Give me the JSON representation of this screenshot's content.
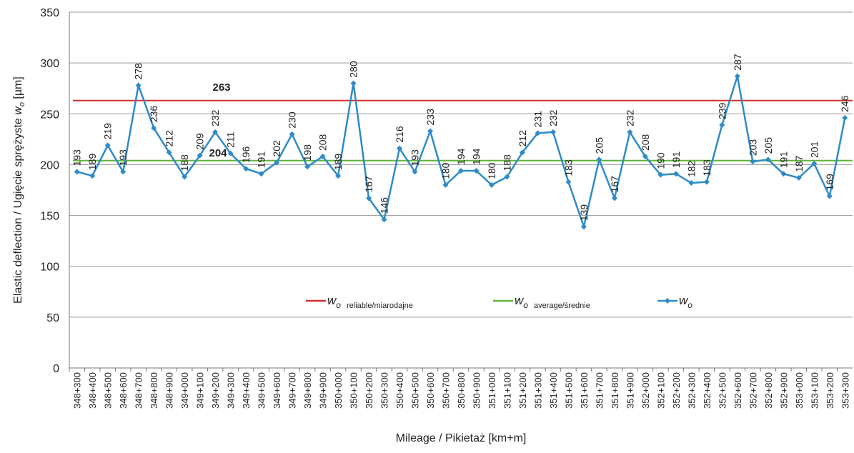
{
  "chart_data": {
    "type": "line",
    "ylabel": [
      "Elastic deflection / Ugięcie sprężyste ",
      "w",
      "o",
      " [µm]"
    ],
    "xlabel": "Mileage / Pikietaż [km+m]",
    "categories": [
      "348+300",
      "348+400",
      "348+500",
      "348+600",
      "348+700",
      "348+800",
      "348+900",
      "349+000",
      "349+100",
      "349+200",
      "349+300",
      "349+400",
      "349+500",
      "349+600",
      "349+700",
      "349+800",
      "349+900",
      "350+000",
      "350+100",
      "350+200",
      "350+300",
      "350+400",
      "350+500",
      "350+600",
      "350+700",
      "350+800",
      "350+900",
      "351+000",
      "351+100",
      "351+200",
      "351+300",
      "351+400",
      "351+500",
      "351+600",
      "351+700",
      "351+800",
      "351+900",
      "352+000",
      "352+100",
      "352+200",
      "352+300",
      "352+400",
      "352+500",
      "352+600",
      "352+700",
      "352+800",
      "352+900",
      "353+000",
      "353+100",
      "353+200",
      "353+300"
    ],
    "series": [
      {
        "name": "w",
        "subscript": "o",
        "note": "",
        "color": "#2e8bc8",
        "values": [
          193,
          189,
          219,
          193,
          278,
          236,
          212,
          188,
          209,
          232,
          211,
          196,
          191,
          202,
          230,
          198,
          208,
          189,
          280,
          167,
          146,
          216,
          193,
          233,
          180,
          194,
          194,
          180,
          188,
          212,
          231,
          232,
          183,
          139,
          205,
          167,
          232,
          208,
          190,
          191,
          182,
          183,
          239,
          287,
          203,
          205,
          191,
          187,
          201,
          169,
          246
        ]
      }
    ],
    "reference_lines": [
      {
        "name": "w",
        "subscript": "o",
        "note": "reliable/miarodajne",
        "value": 263,
        "color": "#d62d2d"
      },
      {
        "name": "w",
        "subscript": "o",
        "note": "average/średnie",
        "value": 204,
        "color": "#5db434"
      }
    ],
    "ylim": [
      0,
      350
    ],
    "yticks": [
      0,
      50,
      100,
      150,
      200,
      250,
      300,
      350
    ],
    "grid": true
  }
}
